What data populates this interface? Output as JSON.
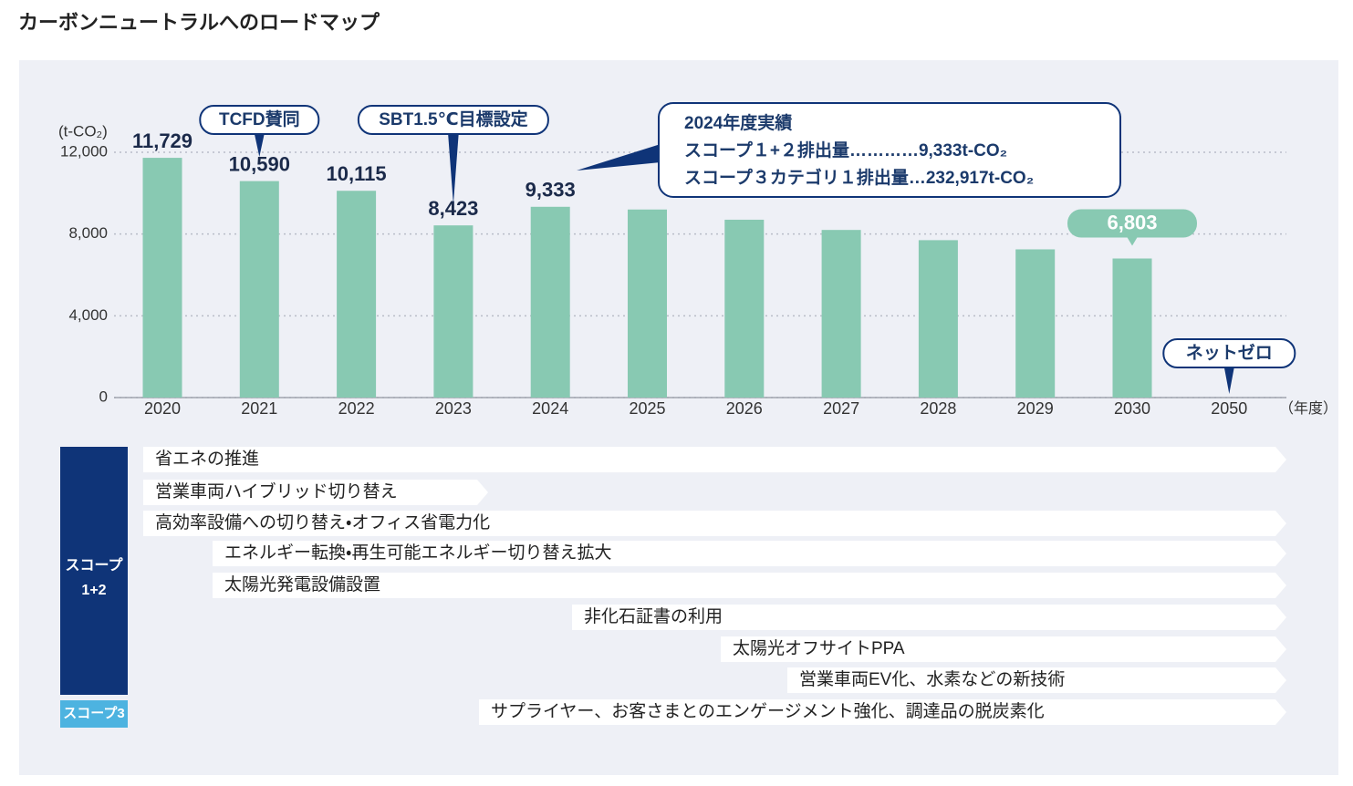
{
  "chart_data": {
    "type": "bar",
    "title": "カーボンニュートラルへのロードマップ",
    "y_label": "(t-CO₂)",
    "x_label": "（年度）",
    "categories": [
      "2020",
      "2021",
      "2022",
      "2023",
      "2024",
      "2025",
      "2026",
      "2027",
      "2028",
      "2029",
      "2030",
      "2050"
    ],
    "values": [
      11729,
      10590,
      10115,
      8423,
      9333,
      9200,
      8700,
      8200,
      7700,
      7250,
      6803,
      null
    ],
    "value_labels": [
      "11,729",
      "10,590",
      "10,115",
      "8,423",
      "9,333",
      null,
      null,
      null,
      null,
      null,
      "6,803",
      null
    ],
    "color": "#88c9b2",
    "ylim": [
      0,
      12000
    ],
    "yticks": [
      0,
      {
        "value": 4000,
        "label": "4,000"
      },
      {
        "value": 8000,
        "label": "8,000"
      },
      {
        "value": 12000,
        "label": "12,000"
      }
    ],
    "grid": true,
    "annotations": [
      "TCFD賛同",
      "SBT1.5℃目標設定",
      "ネットゼロ"
    ],
    "callout": [
      "2024年度実績",
      "スコープ１+２排出量…………9,333t-CO₂",
      "スコープ３カテゴリ１排出量…232,917t-CO₂"
    ]
  },
  "roadmap": {
    "scope12": [
      "スコープ",
      "1+2"
    ],
    "scope3": "スコープ3",
    "rows": [
      "省エネの推進",
      "営業車両ハイブリッド切り替え",
      "高効率設備への切り替え・オフィス省電力化",
      "エネルギー転換・再生可能エネルギー切り替え拡大",
      "太陽光発電設備設置",
      "非化石証書の利用",
      "太陽光オフサイトPPA",
      "営業車両EV化、水素などの新技術",
      "サプライヤー、お客さまとのエンゲージメント強化、調達品の脱炭素化"
    ]
  }
}
